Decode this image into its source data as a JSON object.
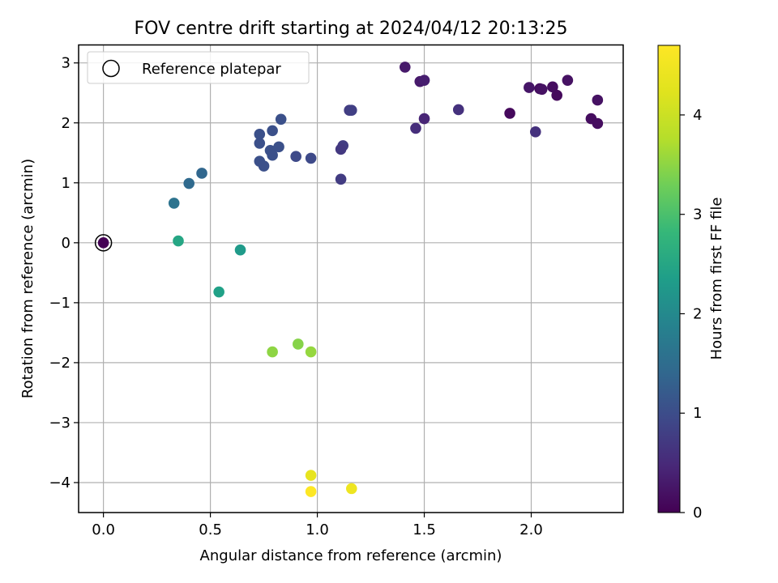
{
  "chart_data": {
    "type": "scatter",
    "title": "FOV centre drift starting at 2024/04/12 20:13:25",
    "xlabel": "Angular distance from reference (arcmin)",
    "ylabel": "Rotation from reference (arcmin)",
    "xlim": [
      -0.116,
      2.43
    ],
    "ylim": [
      -4.5,
      3.3
    ],
    "xticks": [
      0.0,
      0.5,
      1.0,
      1.5,
      2.0
    ],
    "xtick_labels": [
      "0.0",
      "0.5",
      "1.0",
      "1.5",
      "2.0"
    ],
    "yticks": [
      3,
      2,
      1,
      0,
      -1,
      -2,
      -3,
      -4
    ],
    "ytick_labels": [
      "3",
      "2",
      "1",
      "0",
      "−1",
      "−2",
      "−3",
      "−4"
    ],
    "grid": true,
    "legend": {
      "placement": "top-left",
      "entries": [
        "Reference platepar"
      ]
    },
    "colorbar": {
      "label": "Hours from first FF file",
      "range": [
        0,
        4.7
      ],
      "ticks": [
        0,
        1,
        2,
        3,
        4
      ],
      "tick_labels": [
        "0",
        "1",
        "2",
        "3",
        "4"
      ],
      "colormap": "viridis"
    },
    "reference_point": {
      "x": 0.0,
      "y": 0.0
    },
    "points": [
      {
        "x": 0.0,
        "y": 0.0,
        "t": 0.0
      },
      {
        "x": 1.41,
        "y": 2.93,
        "t": 0.3
      },
      {
        "x": 1.48,
        "y": 2.69,
        "t": 0.3
      },
      {
        "x": 1.5,
        "y": 2.71,
        "t": 0.35
      },
      {
        "x": 1.66,
        "y": 2.22,
        "t": 0.6
      },
      {
        "x": 1.5,
        "y": 2.07,
        "t": 0.45
      },
      {
        "x": 1.46,
        "y": 1.91,
        "t": 0.55
      },
      {
        "x": 1.9,
        "y": 2.16,
        "t": 0.1
      },
      {
        "x": 1.99,
        "y": 2.59,
        "t": 0.25
      },
      {
        "x": 2.04,
        "y": 2.57,
        "t": 0.15
      },
      {
        "x": 2.05,
        "y": 2.56,
        "t": 0.2
      },
      {
        "x": 2.1,
        "y": 2.6,
        "t": 0.15
      },
      {
        "x": 2.12,
        "y": 2.46,
        "t": 0.1
      },
      {
        "x": 2.17,
        "y": 2.71,
        "t": 0.2
      },
      {
        "x": 2.02,
        "y": 1.85,
        "t": 0.6
      },
      {
        "x": 2.28,
        "y": 2.07,
        "t": 0.15
      },
      {
        "x": 2.31,
        "y": 2.38,
        "t": 0.2
      },
      {
        "x": 2.31,
        "y": 1.99,
        "t": 0.15
      },
      {
        "x": 1.15,
        "y": 2.21,
        "t": 0.75
      },
      {
        "x": 1.16,
        "y": 2.21,
        "t": 0.8
      },
      {
        "x": 1.12,
        "y": 1.62,
        "t": 0.75
      },
      {
        "x": 1.11,
        "y": 1.56,
        "t": 0.7
      },
      {
        "x": 1.11,
        "y": 1.06,
        "t": 0.75
      },
      {
        "x": 0.83,
        "y": 2.06,
        "t": 1.05
      },
      {
        "x": 0.79,
        "y": 1.87,
        "t": 1.05
      },
      {
        "x": 0.73,
        "y": 1.81,
        "t": 1.05
      },
      {
        "x": 0.73,
        "y": 1.66,
        "t": 1.05
      },
      {
        "x": 0.78,
        "y": 1.54,
        "t": 1.05
      },
      {
        "x": 0.82,
        "y": 1.6,
        "t": 1.05
      },
      {
        "x": 0.79,
        "y": 1.46,
        "t": 1.05
      },
      {
        "x": 0.9,
        "y": 1.44,
        "t": 0.95
      },
      {
        "x": 0.97,
        "y": 1.41,
        "t": 0.95
      },
      {
        "x": 0.73,
        "y": 1.36,
        "t": 1.05
      },
      {
        "x": 0.75,
        "y": 1.28,
        "t": 1.05
      },
      {
        "x": 0.46,
        "y": 1.16,
        "t": 1.4
      },
      {
        "x": 0.4,
        "y": 0.99,
        "t": 1.45
      },
      {
        "x": 0.33,
        "y": 0.66,
        "t": 1.6
      },
      {
        "x": 0.35,
        "y": 0.03,
        "t": 2.5
      },
      {
        "x": 0.64,
        "y": -0.12,
        "t": 2.3
      },
      {
        "x": 0.54,
        "y": -0.82,
        "t": 2.4
      },
      {
        "x": 0.79,
        "y": -1.82,
        "t": 3.5
      },
      {
        "x": 0.91,
        "y": -1.69,
        "t": 3.45
      },
      {
        "x": 0.97,
        "y": -1.82,
        "t": 3.55
      },
      {
        "x": 0.97,
        "y": -3.88,
        "t": 4.35
      },
      {
        "x": 0.97,
        "y": -4.15,
        "t": 4.7
      },
      {
        "x": 1.16,
        "y": -4.1,
        "t": 4.45
      }
    ]
  }
}
